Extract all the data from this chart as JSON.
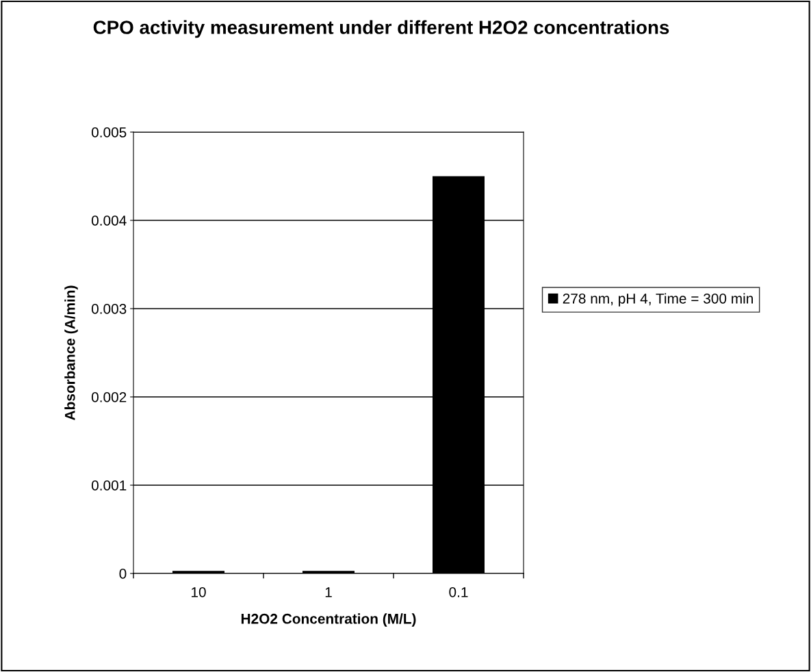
{
  "chart_data": {
    "type": "bar",
    "title": "CPO activity measurement under different H2O2 concentrations",
    "xlabel": "H2O2 Concentration (M/L)",
    "ylabel": "Absorbance (A/min)",
    "categories": [
      "10",
      "1",
      "0.1"
    ],
    "series": [
      {
        "name": "278 nm, pH 4, Time = 300 min",
        "color": "#000000",
        "values": [
          3e-05,
          3e-05,
          0.0045
        ]
      }
    ],
    "ylim": [
      0,
      0.005
    ],
    "yticks": [
      {
        "value": 0,
        "label": "0"
      },
      0.001,
      0.002,
      0.003,
      0.004,
      0.005
    ],
    "grid": "y",
    "legend": "right"
  }
}
